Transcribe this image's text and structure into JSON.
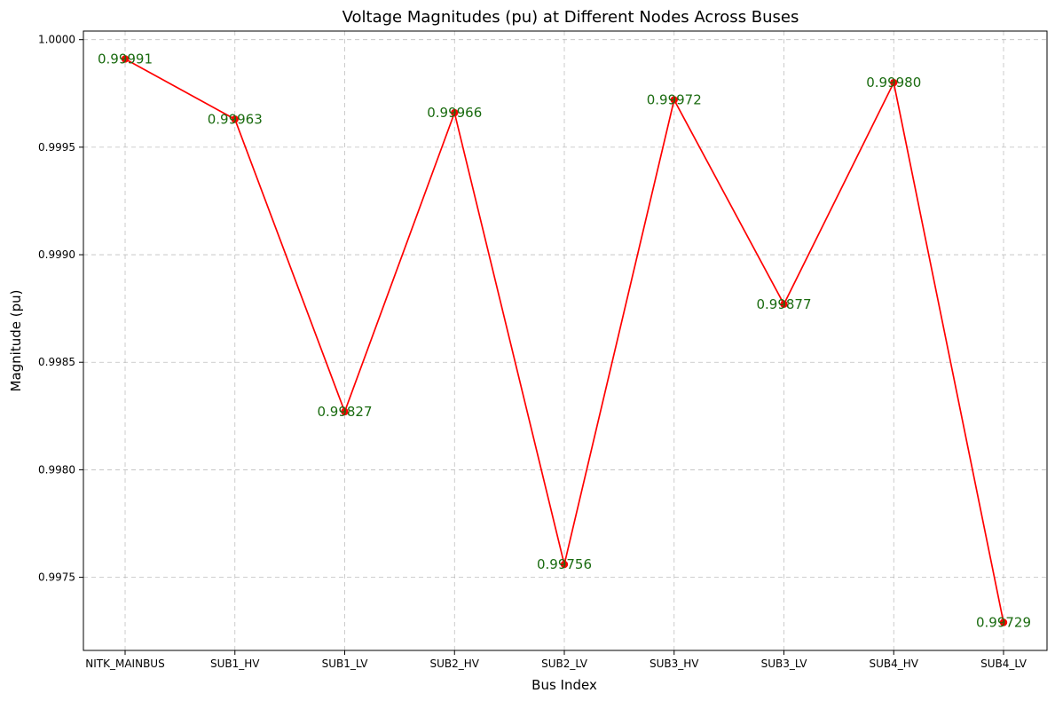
{
  "chart_data": {
    "type": "line",
    "title": "Voltage Magnitudes (pu) at Different Nodes Across Buses",
    "xlabel": "Bus Index",
    "ylabel": "Magnitude (pu)",
    "categories": [
      "NITK_MAINBUS",
      "SUB1_HV",
      "SUB1_LV",
      "SUB2_HV",
      "SUB2_LV",
      "SUB3_HV",
      "SUB3_LV",
      "SUB4_HV",
      "SUB4_LV"
    ],
    "series": [
      {
        "values": [
          0.99991,
          0.99963,
          0.99827,
          0.99966,
          0.99756,
          0.99972,
          0.99877,
          0.9998,
          0.99729
        ],
        "labels": [
          "0.99991",
          "0.99963",
          "0.99827",
          "0.99966",
          "0.99756",
          "0.99972",
          "0.99877",
          "0.99980",
          "0.99729"
        ],
        "color": "#ff0000",
        "marker": "circle"
      }
    ],
    "ylim": [
      0.99716,
      1.00004
    ],
    "yticks": [
      0.9975,
      0.998,
      0.9985,
      0.999,
      0.9995,
      1.0
    ],
    "ytick_labels": [
      "0.9975",
      "0.9980",
      "0.9985",
      "0.9990",
      "0.9995",
      "1.0000"
    ],
    "grid": true,
    "label_color": "#1a6b10"
  }
}
